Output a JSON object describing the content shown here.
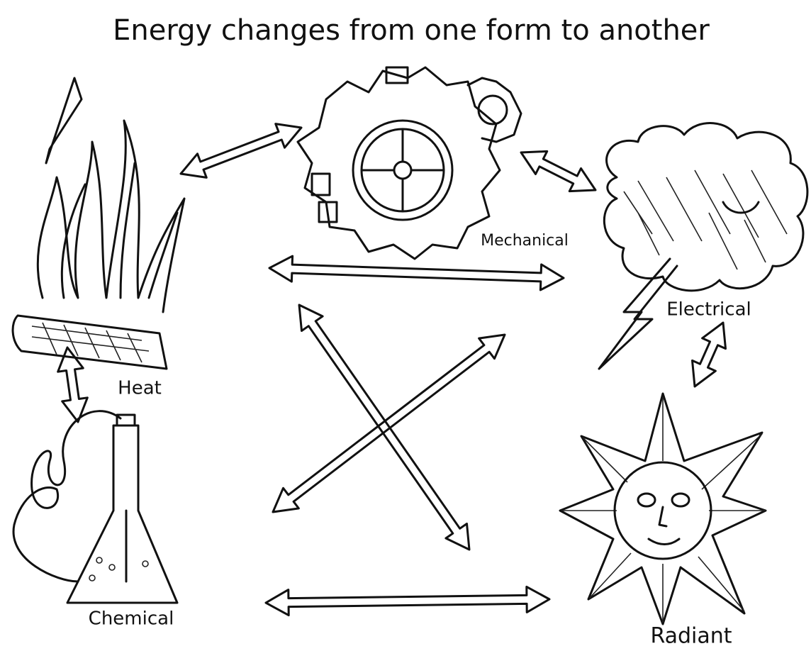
{
  "title": "Energy changes from one form to another",
  "nodes": [
    {
      "label": "Heat"
    },
    {
      "label": "Mechanical"
    },
    {
      "label": "Electrical"
    },
    {
      "label": "Chemical"
    },
    {
      "label": "Radiant"
    }
  ]
}
